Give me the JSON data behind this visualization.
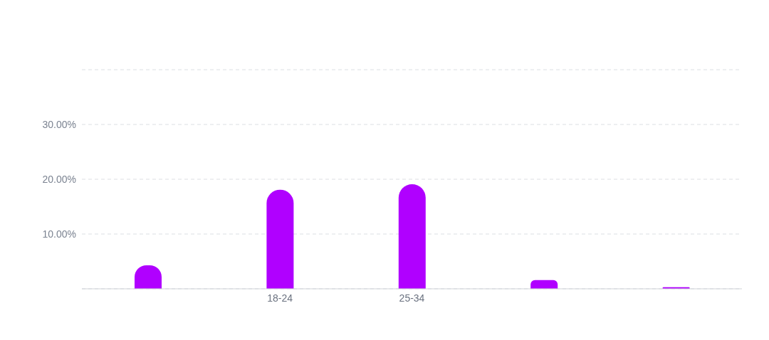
{
  "chart_data": {
    "type": "bar",
    "categories": [
      null,
      "18-24",
      "25-34",
      null,
      null
    ],
    "values": [
      4.3,
      18.1,
      19.1,
      1.6,
      0.3
    ],
    "color": "#b000ff",
    "ylim": [
      0,
      40
    ],
    "yticks": [
      {
        "value": 0,
        "label": null
      },
      {
        "value": 10,
        "label": "10.00%"
      },
      {
        "value": 20,
        "label": "20.00%"
      },
      {
        "value": 30,
        "label": "30.00%"
      },
      {
        "value": 40,
        "label": null
      }
    ],
    "grid": "y"
  }
}
